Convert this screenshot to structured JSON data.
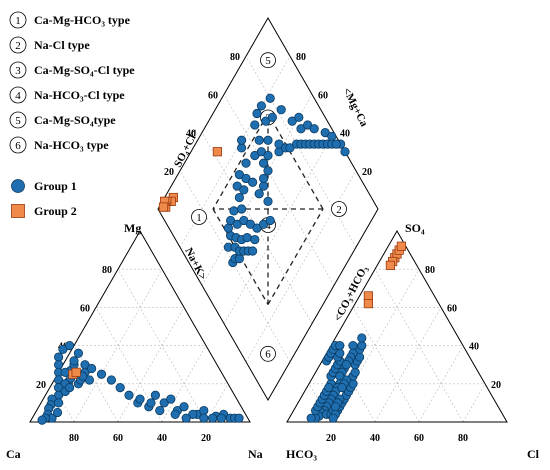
{
  "legend": {
    "types": [
      {
        "num": "1",
        "text": "Ca-Mg-HCO₃ type"
      },
      {
        "num": "2",
        "text": "Na-Cl type"
      },
      {
        "num": "3",
        "text": "Ca-Mg-SO₄-Cl type"
      },
      {
        "num": "4",
        "text": "Na-HCO₃-Cl type"
      },
      {
        "num": "5",
        "text": "Ca-Mg-SO₄type"
      },
      {
        "num": "6",
        "text": "Na-HCO₃ type"
      }
    ],
    "groups": [
      {
        "name": "Group 1",
        "marker": "circle",
        "color": "#1f6fb0"
      },
      {
        "name": "Group 2",
        "marker": "square",
        "color": "#f08a4b"
      }
    ]
  },
  "labels": {
    "cation_corner_mg": "Mg",
    "cation_corner_ca": "Ca",
    "cation_corner_na": "Na",
    "anion_corner_so4": "SO₄",
    "anion_corner_hco3": "HCO₃",
    "anion_corner_cl": "Cl",
    "diamond_upper_left": "SO₄+Cl>",
    "diamond_upper_right": "<Mg+Ca",
    "diamond_lower_left": "Na+K>",
    "diamond_lower_right": "<CO₃+HCO₃"
  },
  "chart_data": {
    "type": "scatter",
    "plot_type": "piper-trilinear",
    "ticks": [
      "20",
      "40",
      "60",
      "80"
    ],
    "zones": [
      "1",
      "2",
      "3",
      "4",
      "5",
      "6"
    ],
    "series": [
      {
        "name": "Group 1",
        "cation_points": [
          [
            72,
            21
          ],
          [
            70,
            23
          ],
          [
            68,
            27
          ],
          [
            66,
            26
          ],
          [
            65,
            30
          ],
          [
            64,
            32
          ],
          [
            70,
            34
          ],
          [
            66,
            38
          ],
          [
            62,
            40
          ],
          [
            60,
            36
          ],
          [
            72,
            30
          ],
          [
            74,
            26
          ],
          [
            76,
            22
          ],
          [
            68,
            20
          ],
          [
            66,
            22
          ],
          [
            62,
            26
          ],
          [
            60,
            30
          ],
          [
            58,
            28
          ],
          [
            55,
            25
          ],
          [
            52,
            22
          ],
          [
            50,
            18
          ],
          [
            48,
            14
          ],
          [
            46,
            10
          ],
          [
            44,
            12
          ],
          [
            42,
            8
          ],
          [
            40,
            10
          ],
          [
            36,
            14
          ],
          [
            34,
            10
          ],
          [
            30,
            6
          ],
          [
            26,
            8
          ],
          [
            22,
            4
          ],
          [
            18,
            6
          ],
          [
            14,
            3
          ],
          [
            10,
            4
          ],
          [
            8,
            2
          ],
          [
            6,
            2
          ],
          [
            4,
            2
          ],
          [
            16,
            2
          ],
          [
            20,
            2
          ],
          [
            24,
            4
          ],
          [
            28,
            2
          ],
          [
            30,
            12
          ],
          [
            32,
            4
          ],
          [
            38,
            6
          ],
          [
            12,
            2
          ],
          [
            62,
            22
          ],
          [
            64,
            24
          ],
          [
            71,
            26
          ],
          [
            74,
            20
          ],
          [
            78,
            18
          ],
          [
            80,
            14
          ],
          [
            84,
            12
          ],
          [
            86,
            9
          ],
          [
            88,
            7
          ],
          [
            90,
            4
          ],
          [
            89,
            2
          ],
          [
            92,
            2
          ],
          [
            94,
            1
          ],
          [
            85,
            5
          ],
          [
            82,
            10
          ],
          [
            76,
            16
          ],
          [
            73,
            18
          ]
        ],
        "anion_points": [
          [
            70,
            20
          ],
          [
            68,
            24
          ],
          [
            66,
            26
          ],
          [
            64,
            28
          ],
          [
            62,
            30
          ],
          [
            60,
            32
          ],
          [
            60,
            34
          ],
          [
            58,
            36
          ],
          [
            66,
            32
          ],
          [
            64,
            34
          ],
          [
            62,
            36
          ],
          [
            60,
            38
          ],
          [
            58,
            40
          ],
          [
            56,
            40
          ],
          [
            60,
            28
          ],
          [
            62,
            26
          ],
          [
            64,
            24
          ],
          [
            66,
            20
          ],
          [
            68,
            18
          ],
          [
            70,
            16
          ],
          [
            72,
            14
          ],
          [
            74,
            12
          ],
          [
            76,
            10
          ],
          [
            78,
            8
          ],
          [
            80,
            6
          ],
          [
            82,
            5
          ],
          [
            84,
            3
          ],
          [
            86,
            2
          ],
          [
            88,
            2
          ],
          [
            80,
            4
          ],
          [
            78,
            4
          ],
          [
            76,
            6
          ],
          [
            74,
            6
          ],
          [
            72,
            8
          ],
          [
            70,
            10
          ],
          [
            68,
            12
          ],
          [
            66,
            14
          ],
          [
            64,
            16
          ],
          [
            62,
            18
          ],
          [
            60,
            20
          ],
          [
            58,
            24
          ],
          [
            56,
            26
          ],
          [
            54,
            30
          ],
          [
            52,
            32
          ],
          [
            50,
            34
          ],
          [
            48,
            38
          ],
          [
            46,
            40
          ],
          [
            44,
            44
          ],
          [
            50,
            40
          ],
          [
            52,
            36
          ],
          [
            54,
            34
          ],
          [
            56,
            32
          ],
          [
            58,
            30
          ],
          [
            62,
            22
          ],
          [
            64,
            20
          ],
          [
            66,
            18
          ],
          [
            70,
            12
          ],
          [
            72,
            10
          ],
          [
            74,
            8
          ],
          [
            76,
            4
          ],
          [
            78,
            2
          ],
          [
            84,
            6
          ],
          [
            82,
            8
          ],
          [
            80,
            10
          ],
          [
            78,
            12
          ],
          [
            76,
            14
          ],
          [
            74,
            16
          ],
          [
            72,
            18
          ]
        ],
        "diamond_points": [
          [
            80,
            52
          ],
          [
            78,
            58
          ],
          [
            75,
            55
          ],
          [
            74,
            60
          ],
          [
            73,
            63
          ],
          [
            72,
            57
          ],
          [
            70,
            54
          ],
          [
            70,
            64
          ],
          [
            68,
            60
          ],
          [
            67,
            52
          ],
          [
            66,
            65
          ],
          [
            64,
            58
          ],
          [
            62,
            62
          ],
          [
            62,
            54
          ],
          [
            60,
            66
          ],
          [
            58,
            70
          ],
          [
            56,
            66
          ],
          [
            54,
            72
          ],
          [
            52,
            68
          ],
          [
            50,
            58
          ],
          [
            50,
            64
          ],
          [
            48,
            72
          ],
          [
            46,
            78
          ],
          [
            44,
            80
          ],
          [
            42,
            70
          ],
          [
            40,
            60
          ],
          [
            38,
            68
          ],
          [
            36,
            72
          ],
          [
            34,
            78
          ],
          [
            32,
            68
          ],
          [
            30,
            80
          ],
          [
            28,
            74
          ],
          [
            26,
            80
          ],
          [
            24,
            72
          ],
          [
            20,
            78
          ],
          [
            18,
            70
          ],
          [
            16,
            62
          ],
          [
            14,
            56
          ],
          [
            12,
            60
          ],
          [
            10,
            54
          ],
          [
            8,
            50
          ],
          [
            4,
            44
          ],
          [
            2,
            40
          ],
          [
            0,
            34
          ],
          [
            78,
            52
          ],
          [
            76,
            50
          ],
          [
            74,
            52
          ],
          [
            72,
            50
          ],
          [
            70,
            48
          ],
          [
            68,
            46
          ],
          [
            64,
            48
          ],
          [
            60,
            50
          ],
          [
            56,
            48
          ],
          [
            52,
            46
          ],
          [
            48,
            52
          ],
          [
            46,
            58
          ],
          [
            44,
            60
          ],
          [
            40,
            64
          ],
          [
            36,
            64
          ],
          [
            30,
            60
          ],
          [
            28,
            62
          ],
          [
            26,
            58
          ],
          [
            24,
            56
          ],
          [
            20,
            54
          ],
          [
            18,
            52
          ],
          [
            16,
            50
          ],
          [
            14,
            48
          ],
          [
            12,
            46
          ],
          [
            10,
            44
          ],
          [
            8,
            42
          ],
          [
            6,
            40
          ],
          [
            4,
            38
          ],
          [
            2,
            36
          ],
          [
            0,
            30
          ]
        ]
      },
      {
        "name": "Group 2",
        "cation_points": [
          [
            68,
            25
          ],
          [
            66,
            26
          ]
        ],
        "anion_points": [
          [
            8,
            86
          ],
          [
            6,
            88
          ],
          [
            4,
            90
          ],
          [
            2,
            92
          ],
          [
            10,
            84
          ],
          [
            12,
            82
          ],
          [
            30,
            66
          ],
          [
            32,
            62
          ]
        ],
        "diamond_points": [
          [
            58,
            88
          ],
          [
            90,
            96
          ],
          [
            92,
            96
          ],
          [
            94,
            98
          ],
          [
            96,
            97
          ],
          [
            95,
            99
          ],
          [
            97,
            98
          ]
        ]
      }
    ]
  }
}
